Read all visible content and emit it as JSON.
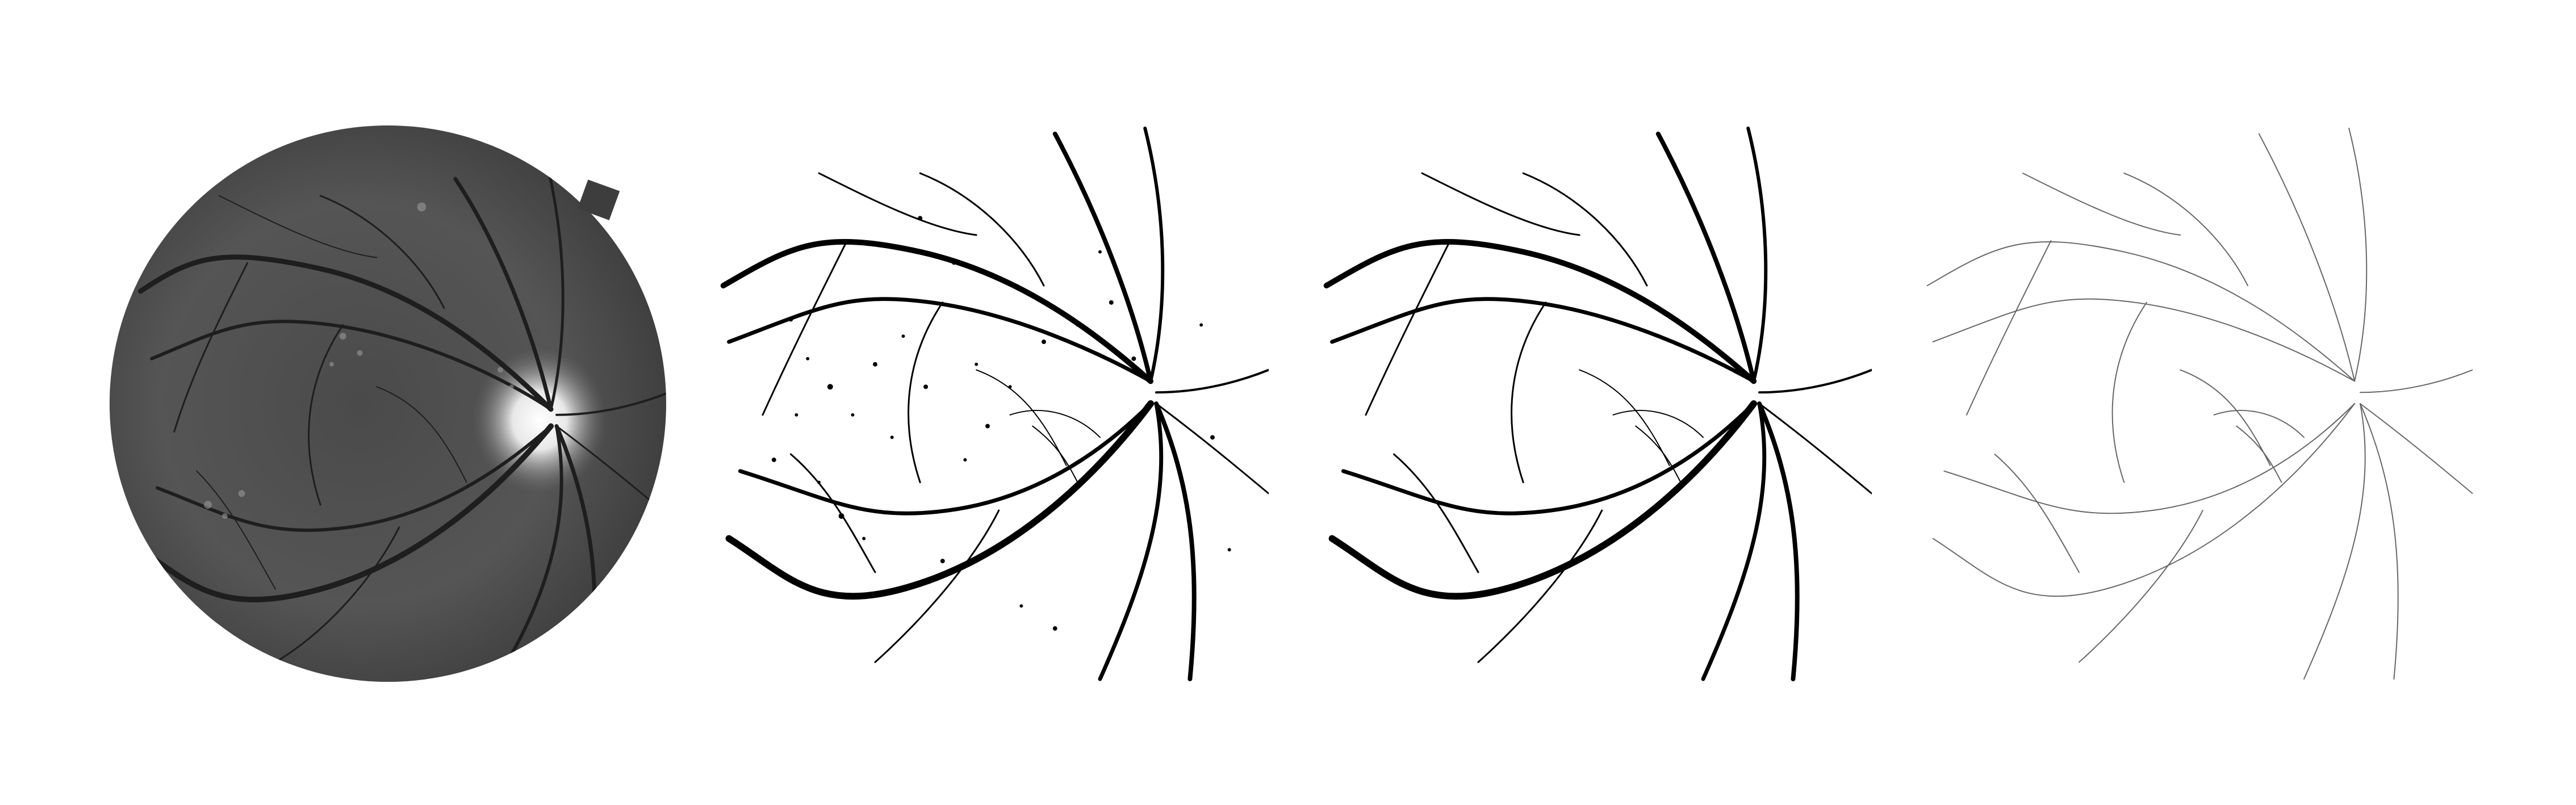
{
  "figure": {
    "panels": [
      {
        "id": "fundus",
        "kind": "grayscale fundus photograph",
        "colors": {
          "background": "#5a5a5a",
          "vessel": "#202020",
          "optic_disc": "#f0f0f0"
        }
      },
      {
        "id": "noisy-segmentation",
        "kind": "vessel segmentation map with noise",
        "colors": {
          "background": "#ffffff",
          "vessel": "#000000"
        }
      },
      {
        "id": "clean-segmentation",
        "kind": "vessel segmentation map",
        "colors": {
          "background": "#ffffff",
          "vessel": "#000000"
        }
      },
      {
        "id": "skeleton",
        "kind": "thin vessel skeleton",
        "colors": {
          "background": "#ffffff",
          "vessel": "#666666"
        }
      }
    ]
  }
}
